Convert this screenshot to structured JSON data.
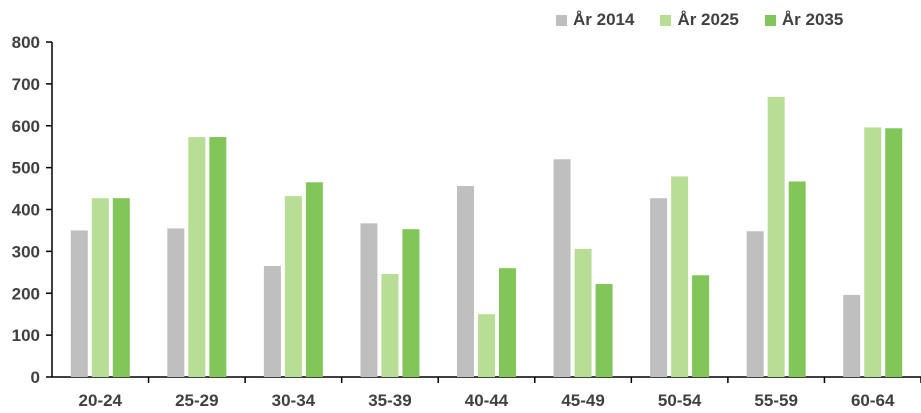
{
  "chart_data": {
    "type": "bar",
    "categories": [
      "20-24",
      "25-29",
      "30-34",
      "35-39",
      "40-44",
      "45-49",
      "50-54",
      "55-59",
      "60-64"
    ],
    "series": [
      {
        "name": "År 2014",
        "color": "#bfbfbf",
        "values": [
          350,
          355,
          265,
          367,
          456,
          520,
          427,
          348,
          196
        ]
      },
      {
        "name": "År 2025",
        "color": "#b8dd95",
        "values": [
          427,
          573,
          432,
          246,
          150,
          306,
          479,
          669,
          596
        ]
      },
      {
        "name": "År 2035",
        "color": "#82c65a",
        "values": [
          427,
          573,
          465,
          353,
          260,
          222,
          243,
          467,
          594
        ]
      }
    ],
    "ylim": [
      0,
      800
    ],
    "yticks": [
      0,
      100,
      200,
      300,
      400,
      500,
      600,
      700,
      800
    ],
    "grid": false,
    "legend_position": "top-right",
    "title": "",
    "xlabel": "",
    "ylabel": ""
  }
}
